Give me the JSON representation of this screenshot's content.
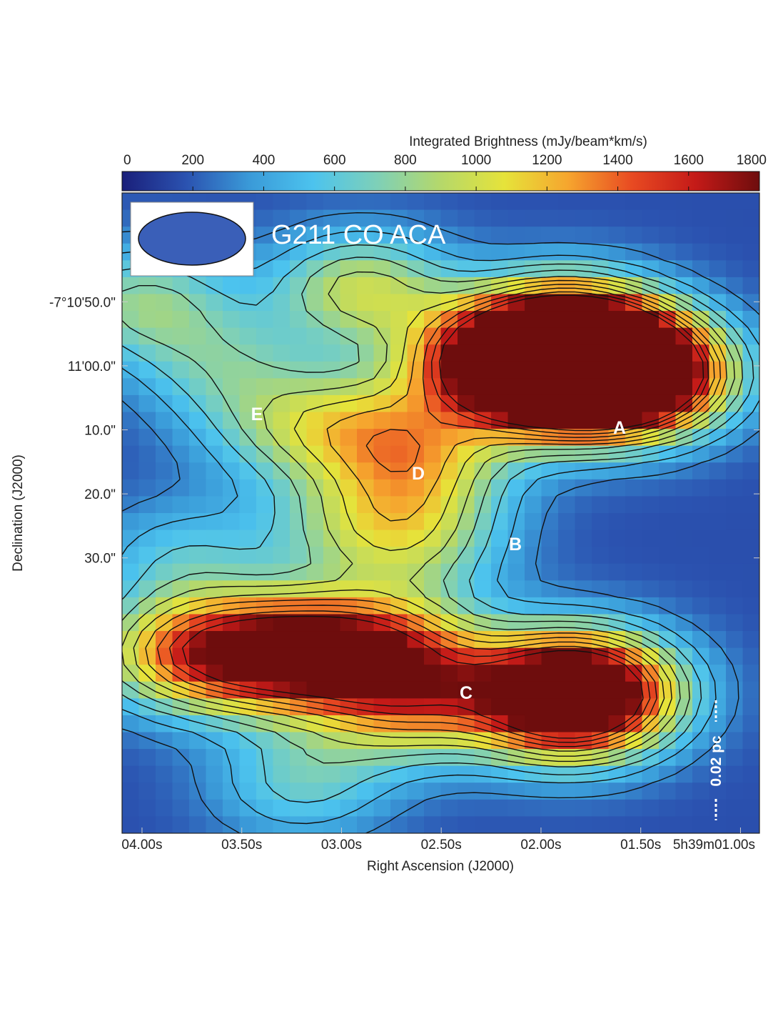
{
  "chart_data": {
    "type": "heatmap",
    "title": "G211 CO ACA",
    "colorbar": {
      "label": "Integrated Brightness (mJy/beam*km/s)",
      "range": [
        0,
        1800
      ],
      "ticks": [
        "0",
        "200",
        "400",
        "600",
        "800",
        "1000",
        "1200",
        "1400",
        "1600",
        "1800"
      ],
      "colors": [
        "#1a1f7a",
        "#2b52b0",
        "#3a9ad8",
        "#4cc3ee",
        "#7ed0b8",
        "#b5d86a",
        "#e6e33a",
        "#f6a52e",
        "#e84a22",
        "#c41a18",
        "#6e0d0d"
      ]
    },
    "xlabel": "Right Ascension (J2000)",
    "ylabel": "Declination (J2000)",
    "xticks": [
      "04.00s",
      "03.50s",
      "03.00s",
      "02.50s",
      "02.00s",
      "01.50s",
      "5h39m01.00s"
    ],
    "yticks": [
      "-7°10'50.0\"",
      "11'00.0\"",
      "10.0\"",
      "20.0\"",
      "30.0\""
    ],
    "grid": false,
    "clumps": [
      "A",
      "B",
      "C",
      "D",
      "E"
    ],
    "scale_bar": "0.02 pc",
    "beam_color": "#3a5fb8",
    "emission_peaks": [
      {
        "ra_s": 4.0,
        "dec_off_arcsec": 0,
        "value": 850
      },
      {
        "ra_s": 2.7,
        "dec_off_arcsec": 64,
        "value": 820
      },
      {
        "ra_s": 3.2,
        "dec_off_arcsec": 75,
        "value": 700
      },
      {
        "ra_s": 2.9,
        "dec_off_arcsec": -2,
        "value": 1050
      },
      {
        "ra_s": 2.3,
        "dec_off_arcsec": 9,
        "value": 950
      },
      {
        "ra_s": 1.88,
        "dec_off_arcsec": 5,
        "value": 1800
      },
      {
        "ra_s": 1.6,
        "dec_off_arcsec": 10,
        "value": 1650
      },
      {
        "ra_s": 1.5,
        "dec_off_arcsec": 12,
        "value": 1500
      },
      {
        "ra_s": 1.9,
        "dec_off_arcsec": 13,
        "value": 1450
      },
      {
        "ra_s": 2.1,
        "dec_off_arcsec": 10,
        "value": 1100
      },
      {
        "ra_s": 3.6,
        "dec_off_arcsec": 10,
        "value": 650
      },
      {
        "ra_s": 2.9,
        "dec_off_arcsec": 19,
        "value": 750
      },
      {
        "ra_s": 2.6,
        "dec_off_arcsec": 28,
        "value": 650
      },
      {
        "ra_s": 3.3,
        "dec_off_arcsec": 20,
        "value": 650
      },
      {
        "ra_s": 2.6,
        "dec_off_arcsec": 23,
        "value": 620
      },
      {
        "ra_s": 2.6,
        "dec_off_arcsec": 38,
        "value": 740
      },
      {
        "ra_s": 3.0,
        "dec_off_arcsec": 35,
        "value": 640
      },
      {
        "ra_s": 3.8,
        "dec_off_arcsec": 40,
        "value": 600
      },
      {
        "ra_s": 3.85,
        "dec_off_arcsec": 55,
        "value": 1050
      },
      {
        "ra_s": 3.45,
        "dec_off_arcsec": 55,
        "value": 1350
      },
      {
        "ra_s": 3.1,
        "dec_off_arcsec": 55,
        "value": 1300
      },
      {
        "ra_s": 2.75,
        "dec_off_arcsec": 54,
        "value": 1050
      },
      {
        "ra_s": 2.5,
        "dec_off_arcsec": 60,
        "value": 650
      },
      {
        "ra_s": 1.92,
        "dec_off_arcsec": 60,
        "value": 1350
      },
      {
        "ra_s": 1.7,
        "dec_off_arcsec": 60,
        "value": 950
      },
      {
        "ra_s": 1.75,
        "dec_off_arcsec": 63,
        "value": 800
      },
      {
        "ra_s": 1.95,
        "dec_off_arcsec": 65,
        "value": 650
      }
    ]
  }
}
